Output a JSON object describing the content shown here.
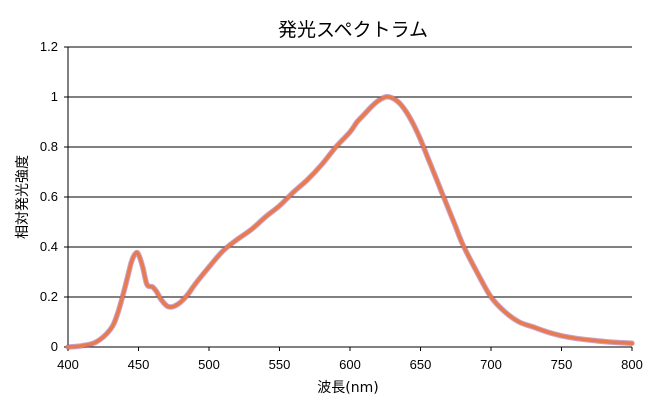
{
  "chart_data": {
    "type": "line",
    "title": "発光スペクトラム",
    "xlabel": "波長(nm)",
    "ylabel": "相対発光強度",
    "xlim": [
      400,
      800
    ],
    "ylim": [
      0,
      1.2
    ],
    "grid": true,
    "x_ticks": [
      400,
      450,
      500,
      550,
      600,
      650,
      700,
      750,
      800
    ],
    "y_ticks": [
      0,
      0.2,
      0.4,
      0.6,
      0.8,
      1,
      1.2
    ],
    "x_tick_labels": [
      "400",
      "450",
      "500",
      "550",
      "600",
      "650",
      "700",
      "750",
      "800"
    ],
    "y_tick_labels": [
      "0",
      "0.2",
      "0.4",
      "0.6",
      "0.8",
      "1",
      "1.2"
    ],
    "series": [
      {
        "color": "#e87a4e",
        "x": [
          400,
          410,
          420,
          430,
          435,
          440,
          445,
          448,
          450,
          453,
          456,
          460,
          463,
          466,
          470,
          473,
          476,
          480,
          485,
          490,
          500,
          510,
          520,
          530,
          540,
          550,
          560,
          570,
          580,
          590,
          600,
          605,
          610,
          615,
          620,
          625,
          628,
          632,
          636,
          640,
          645,
          650,
          655,
          660,
          665,
          670,
          675,
          680,
          690,
          700,
          710,
          720,
          730,
          740,
          750,
          760,
          770,
          780,
          790,
          800
        ],
        "y": [
          0.0,
          0.005,
          0.02,
          0.07,
          0.13,
          0.23,
          0.34,
          0.375,
          0.37,
          0.32,
          0.25,
          0.24,
          0.22,
          0.19,
          0.165,
          0.16,
          0.165,
          0.18,
          0.21,
          0.25,
          0.32,
          0.385,
          0.43,
          0.47,
          0.52,
          0.565,
          0.62,
          0.67,
          0.73,
          0.8,
          0.86,
          0.9,
          0.93,
          0.96,
          0.985,
          1.0,
          1.0,
          0.99,
          0.97,
          0.94,
          0.89,
          0.83,
          0.76,
          0.69,
          0.62,
          0.55,
          0.48,
          0.41,
          0.3,
          0.2,
          0.14,
          0.1,
          0.08,
          0.06,
          0.045,
          0.035,
          0.028,
          0.022,
          0.018,
          0.015
        ]
      }
    ]
  }
}
